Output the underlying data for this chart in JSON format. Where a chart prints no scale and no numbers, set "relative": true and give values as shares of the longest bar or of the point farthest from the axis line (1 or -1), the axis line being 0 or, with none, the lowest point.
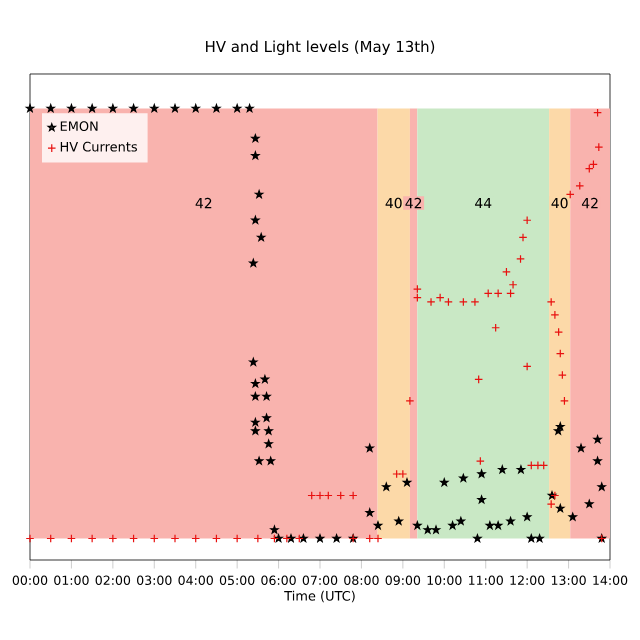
{
  "chart_data": {
    "type": "scatter",
    "title": "HV and Light levels (May 13th)",
    "xlabel": "Time (UTC)",
    "relative": true,
    "legend": "top left",
    "xlim": [
      0,
      14
    ],
    "xticks": [
      {
        "value": 0,
        "label": "00:00"
      },
      {
        "value": 1,
        "label": "01:00"
      },
      {
        "value": 2,
        "label": "02:00"
      },
      {
        "value": 3,
        "label": "03:00"
      },
      {
        "value": 4,
        "label": "04:00"
      },
      {
        "value": 5,
        "label": "05:00"
      },
      {
        "value": 6,
        "label": "06:00"
      },
      {
        "value": 7,
        "label": "07:00"
      },
      {
        "value": 8,
        "label": "08:00"
      },
      {
        "value": 9,
        "label": "09:00"
      },
      {
        "value": 10,
        "label": "10:00"
      },
      {
        "value": 11,
        "label": "11:00"
      },
      {
        "value": 12,
        "label": "12:00"
      },
      {
        "value": 13,
        "label": "13:00"
      },
      {
        "value": 14,
        "label": "14:00"
      }
    ],
    "bands": [
      {
        "axis": "x",
        "from": 0,
        "to": 8.39,
        "label": "42",
        "color": "#f9b3ae"
      },
      {
        "axis": "x",
        "from": 8.39,
        "to": 9.17,
        "label": "40",
        "color": "#fcd9a8"
      },
      {
        "axis": "x",
        "from": 9.17,
        "to": 9.35,
        "label": "42",
        "color": "#f9b3ae"
      },
      {
        "axis": "x",
        "from": 9.35,
        "to": 12.53,
        "label": "44",
        "color": "#c9e8c5"
      },
      {
        "axis": "x",
        "from": 12.53,
        "to": 13.04,
        "label": "40",
        "color": "#fcd9a8"
      },
      {
        "axis": "x",
        "from": 13.04,
        "to": 14,
        "label": "42",
        "color": "#f9b3ae"
      }
    ],
    "series": [
      {
        "name": "EMON",
        "color": "#000000",
        "marker": "star",
        "x": [
          0,
          0.5,
          1,
          1.5,
          2,
          2.5,
          3,
          3.5,
          4,
          4.5,
          5,
          5.3,
          5.44,
          5.44,
          5.53,
          5.44,
          5.58,
          5.39,
          5.39,
          5.44,
          5.67,
          5.44,
          5.71,
          5.44,
          5.71,
          5.44,
          5.76,
          5.76,
          5.53,
          5.81,
          5.9,
          6.0,
          6.3,
          6.6,
          7.0,
          7.4,
          7.8,
          8.2,
          8.2,
          8.4,
          8.6,
          8.9,
          9.1,
          9.35,
          9.6,
          9.8,
          10.0,
          10.2,
          10.4,
          10.46,
          10.8,
          10.9,
          10.9,
          11.1,
          11.3,
          11.4,
          11.6,
          11.85,
          12.0,
          12.1,
          12.3,
          12.6,
          12.75,
          12.8,
          12.8,
          13.1,
          13.3,
          13.5,
          13.7,
          13.7,
          13.8,
          13.8
        ],
        "values": [
          1,
          1,
          1,
          1,
          1,
          1,
          1,
          1,
          1,
          1,
          1,
          1,
          0.93,
          0.89,
          0.8,
          0.74,
          0.7,
          0.64,
          0.41,
          0.36,
          0.37,
          0.33,
          0.33,
          0.27,
          0.28,
          0.25,
          0.25,
          0.22,
          0.18,
          0.18,
          0.02,
          0,
          0,
          0,
          0,
          0,
          0,
          0.21,
          0.06,
          0.03,
          0.12,
          0.04,
          0.13,
          0.03,
          0.02,
          0.02,
          0.13,
          0.03,
          0.04,
          0.14,
          0,
          0.15,
          0.09,
          0.03,
          0.03,
          0.16,
          0.04,
          0.16,
          0.05,
          0,
          0,
          0.1,
          0.25,
          0.26,
          0.07,
          0.05,
          0.21,
          0.08,
          0.23,
          0.18,
          0.12,
          0
        ]
      },
      {
        "name": "HV Currents",
        "color": "#e8100f",
        "marker": "cross",
        "x": [
          0,
          0.5,
          1,
          1.5,
          2,
          2.5,
          3,
          3.5,
          4,
          4.5,
          5,
          5.5,
          5.9,
          6.2,
          6.5,
          6.8,
          7.0,
          7.2,
          7.5,
          7.8,
          7.8,
          8.2,
          8.4,
          8.85,
          9.0,
          9.17,
          9.35,
          9.35,
          9.68,
          9.9,
          10.1,
          10.46,
          10.74,
          10.83,
          10.87,
          11.06,
          11.24,
          11.3,
          11.5,
          11.6,
          11.66,
          11.84,
          11.9,
          12.0,
          12.0,
          12.1,
          12.26,
          12.4,
          12.58,
          12.67,
          12.76,
          12.8,
          12.85,
          12.9,
          12.58,
          12.67,
          13.04,
          13.27,
          13.5,
          13.6,
          13.73,
          13.7,
          13.8
        ],
        "values": [
          0,
          0,
          0,
          0,
          0,
          0,
          0,
          0,
          0,
          0,
          0,
          0,
          0,
          0,
          0,
          0.1,
          0.1,
          0.1,
          0.1,
          0.1,
          0,
          0,
          0,
          0.15,
          0.15,
          0.32,
          0.58,
          0.56,
          0.55,
          0.56,
          0.55,
          0.55,
          0.55,
          0.37,
          0.18,
          0.57,
          0.49,
          0.57,
          0.62,
          0.57,
          0.59,
          0.65,
          0.7,
          0.74,
          0.4,
          0.17,
          0.17,
          0.17,
          0.55,
          0.52,
          0.48,
          0.43,
          0.38,
          0.32,
          0.08,
          0.1,
          0.8,
          0.82,
          0.86,
          0.87,
          0.91,
          0.99,
          0
        ]
      }
    ]
  }
}
